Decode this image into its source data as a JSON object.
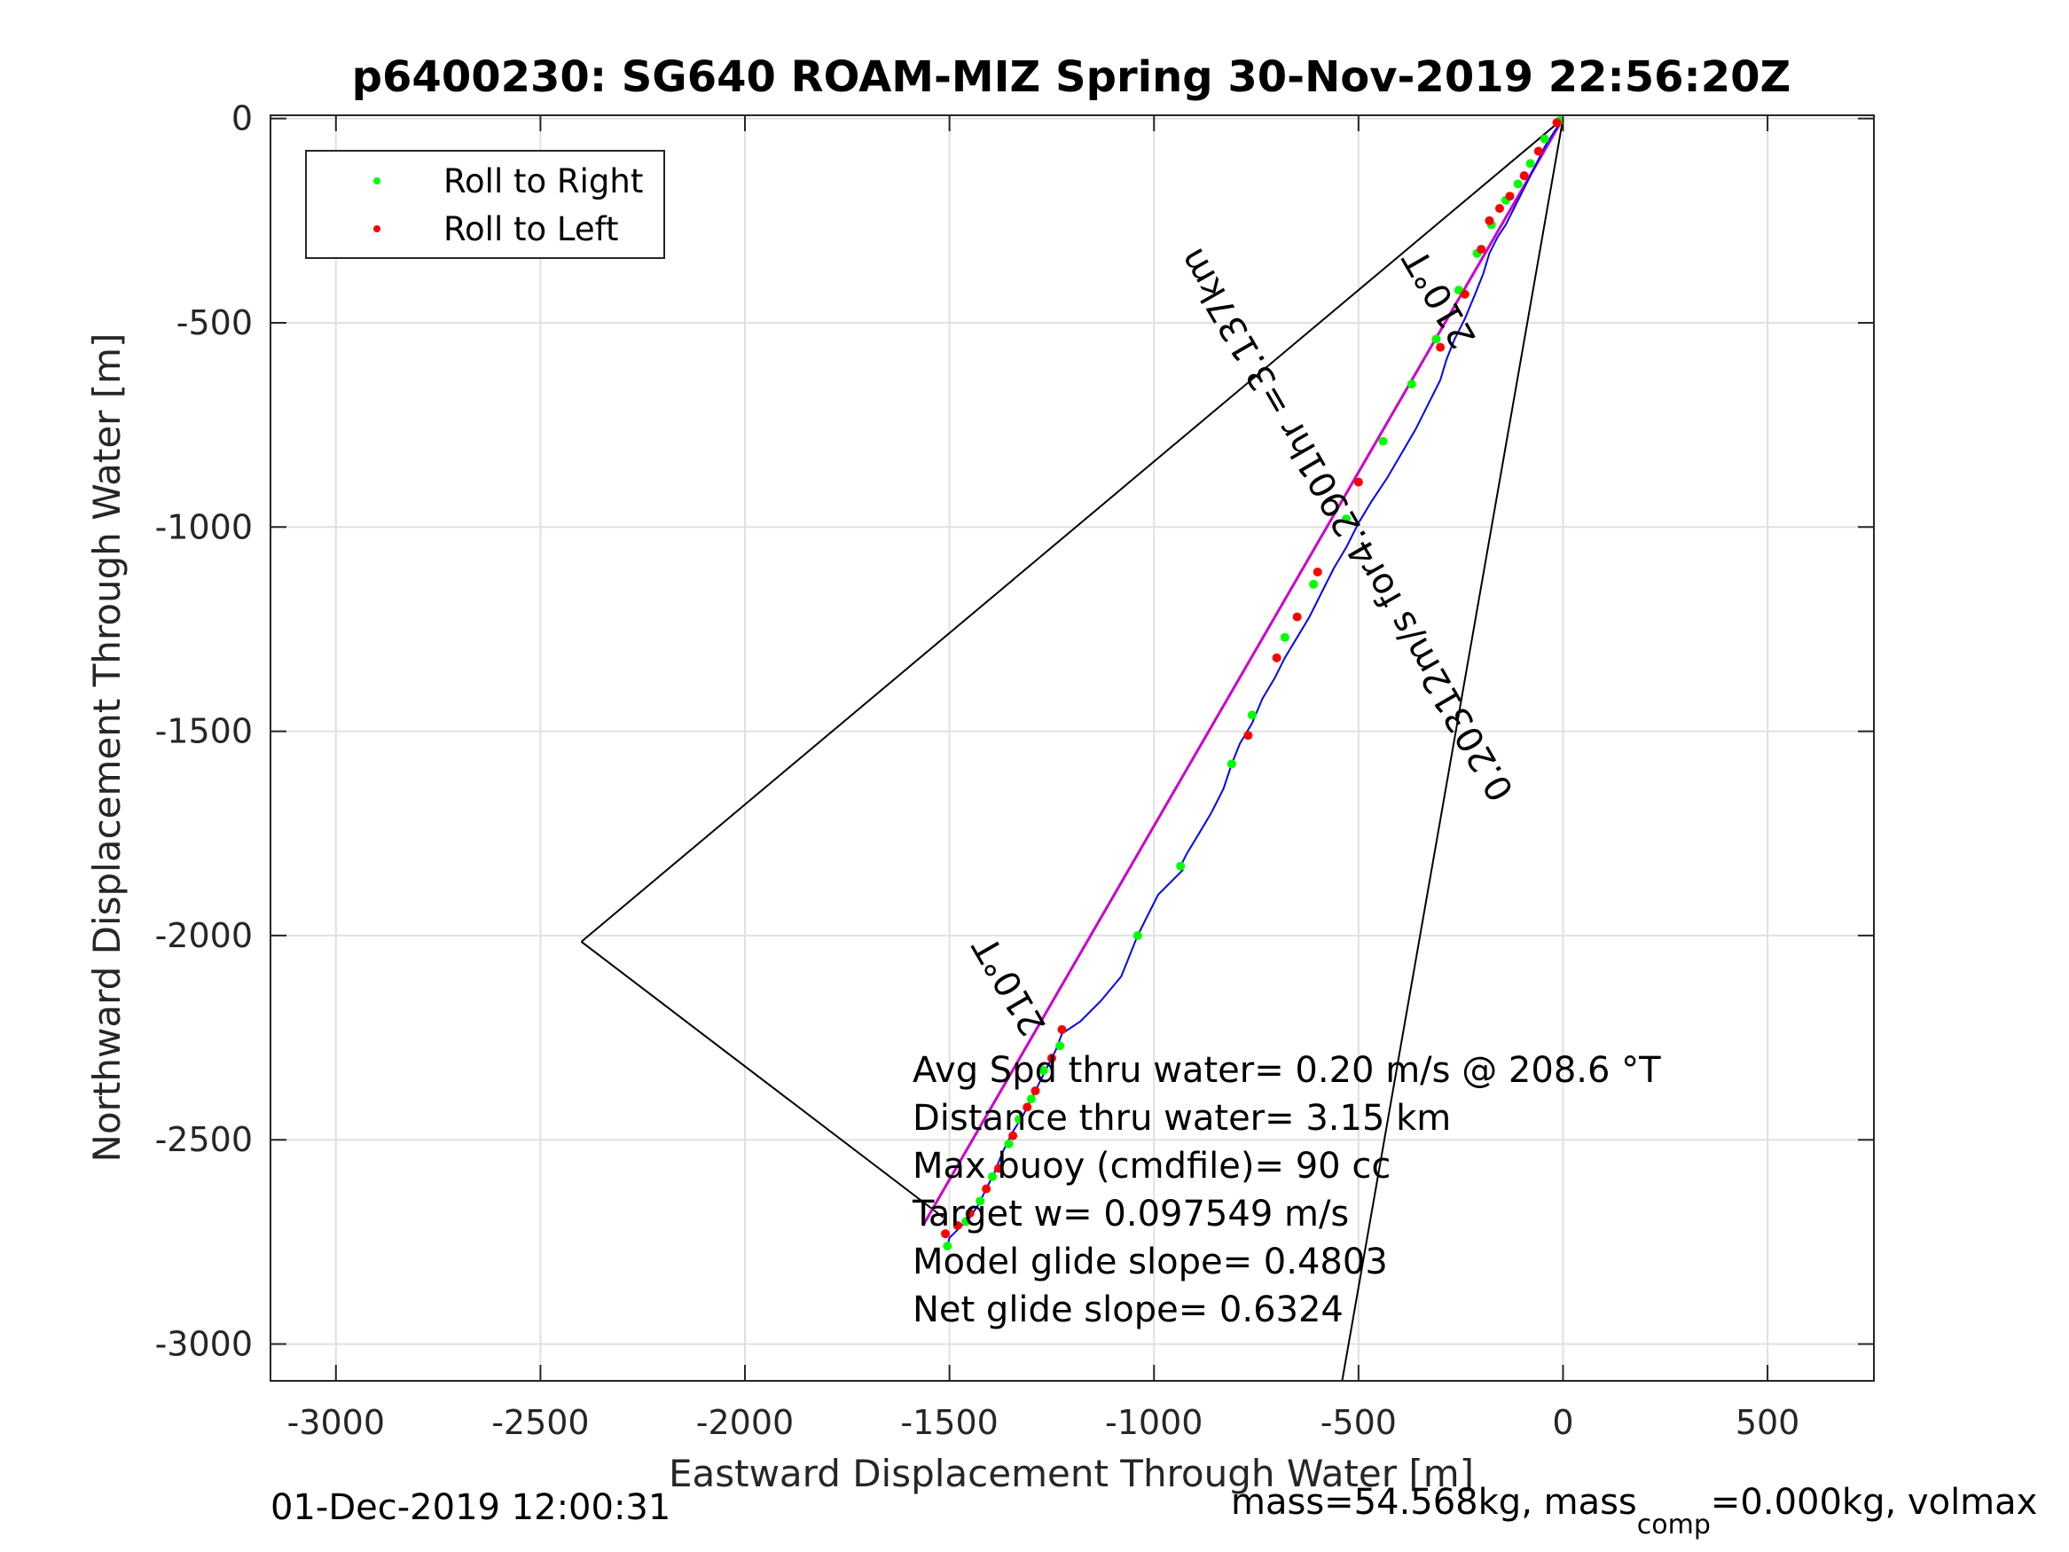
{
  "chart_data": {
    "type": "scatter",
    "title": "p6400230: SG640 ROAM-MIZ Spring 30-Nov-2019 22:56:20Z",
    "xlabel": "Eastward Displacement Through Water [m]",
    "ylabel": "Northward Displacement Through Water [m]",
    "xlim": [
      -3160,
      760
    ],
    "ylim": [
      -3090,
      8
    ],
    "xticks": [
      -3000,
      -2500,
      -2000,
      -1500,
      -1000,
      -500,
      0,
      500
    ],
    "yticks": [
      0,
      -500,
      -1000,
      -1500,
      -2000,
      -2500,
      -3000
    ],
    "xtick_labels": [
      "-3000",
      "-2500",
      "-2000",
      "-1500",
      "-1000",
      "-500",
      "0",
      "500"
    ],
    "ytick_labels": [
      "0",
      "-500",
      "-1000",
      "-1500",
      "-2000",
      "-2500",
      "-3000"
    ],
    "grid": true,
    "legend_position": "top-left",
    "legend": [
      {
        "label": "Roll to Right",
        "color": "#00ff00"
      },
      {
        "label": "Roll to Left",
        "color": "#ff0000"
      }
    ],
    "colors": {
      "track": "#0000ff",
      "course": "#cc00cc",
      "cone": "#000000",
      "roll_right": "#00ff00",
      "roll_left": "#ff0000",
      "grid": "#e0e0e0",
      "axes": "#262626"
    },
    "track": {
      "x": [
        0,
        -20,
        -45,
        -70,
        -95,
        -120,
        -140,
        -160,
        -180,
        -195,
        -215,
        -240,
        -265,
        -285,
        -300,
        -330,
        -360,
        -395,
        -430,
        -470,
        -500,
        -530,
        -560,
        -590,
        -620,
        -650,
        -680,
        -705,
        -735,
        -760,
        -790,
        -810,
        -830,
        -860,
        -890,
        -920,
        -935,
        -930,
        -990,
        -1020,
        -1040,
        -1080,
        -1130,
        -1180,
        -1225,
        -1240,
        -1260,
        -1280,
        -1300,
        -1320,
        -1345,
        -1370,
        -1390,
        -1410,
        -1430,
        -1450,
        -1480,
        -1500,
        -1505
      ],
      "y": [
        0,
        -30,
        -70,
        -120,
        -170,
        -220,
        -260,
        -290,
        -330,
        -380,
        -430,
        -490,
        -540,
        -590,
        -640,
        -700,
        -760,
        -820,
        -880,
        -940,
        -990,
        -1050,
        -1100,
        -1160,
        -1220,
        -1270,
        -1320,
        -1370,
        -1420,
        -1480,
        -1530,
        -1580,
        -1640,
        -1700,
        -1750,
        -1800,
        -1830,
        -1840,
        -1900,
        -1960,
        -2000,
        -2100,
        -2160,
        -2210,
        -2240,
        -2280,
        -2320,
        -2360,
        -2400,
        -2440,
        -2480,
        -2530,
        -2580,
        -2620,
        -2660,
        -2690,
        -2720,
        -2740,
        -2760
      ]
    },
    "roll_right_points": {
      "x": [
        -8,
        -45,
        -80,
        -110,
        -140,
        -175,
        -210,
        -255,
        -310,
        -370,
        -440,
        -530,
        -610,
        -680,
        -760,
        -810,
        -935,
        -1040,
        -1230,
        -1270,
        -1300,
        -1330,
        -1355,
        -1395,
        -1425,
        -1460,
        -1505
      ],
      "y": [
        -5,
        -50,
        -110,
        -160,
        -200,
        -260,
        -330,
        -420,
        -540,
        -650,
        -790,
        -980,
        -1140,
        -1270,
        -1460,
        -1580,
        -1830,
        -2000,
        -2270,
        -2330,
        -2400,
        -2450,
        -2510,
        -2590,
        -2650,
        -2700,
        -2760
      ]
    },
    "roll_left_points": {
      "x": [
        -15,
        -60,
        -95,
        -130,
        -155,
        -180,
        -200,
        -240,
        -300,
        -500,
        -600,
        -650,
        -700,
        -770,
        -1225,
        -1250,
        -1290,
        -1310,
        -1345,
        -1380,
        -1410,
        -1450,
        -1480,
        -1510
      ],
      "y": [
        -10,
        -80,
        -140,
        -190,
        -220,
        -250,
        -320,
        -430,
        -560,
        -890,
        -1110,
        -1220,
        -1320,
        -1510,
        -2230,
        -2300,
        -2380,
        -2420,
        -2490,
        -2570,
        -2620,
        -2680,
        -2710,
        -2730
      ]
    },
    "course_line": {
      "x": [
        0,
        -1565
      ],
      "y": [
        0,
        -2710
      ]
    },
    "cone_lines": [
      {
        "x": [
          0,
          -2400
        ],
        "y": [
          0,
          -2015
        ]
      },
      {
        "x": [
          0,
          -540
        ],
        "y": [
          0,
          -3090
        ]
      },
      {
        "x": [
          -2400,
          -1515
        ],
        "y": [
          -2015,
          -2690
        ]
      }
    ],
    "annotations": [
      "Avg Spd thru water=  0.20 m/s @ 208.6 °T",
      "Distance thru water=  3.15 km",
      "Max buoy (cmdfile)= 90 cc",
      "Target w= 0.097549 m/s",
      "Model glide slope= 0.4803",
      "Net glide slope= 0.6324"
    ],
    "track_labels": {
      "heading_start": "210°T",
      "heading_end": "210°T",
      "speed_text": "0.20312m/s for4.2901hr =3.137km"
    },
    "footer_left": "01-Dec-2019 12:00:31",
    "footer_right": {
      "part1": "mass=54.568kg, mass",
      "sub": "comp",
      "part2": "=0.000kg, volmax"
    }
  }
}
